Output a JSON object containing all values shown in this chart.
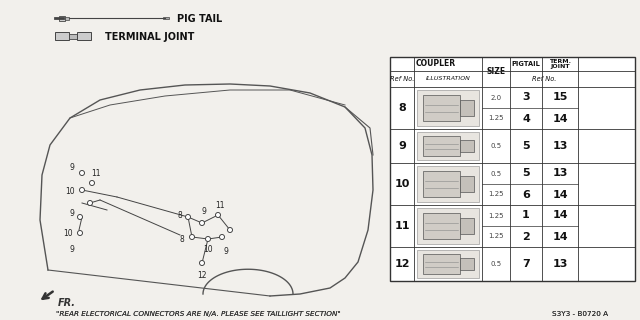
{
  "bg_color": "#f2f0ec",
  "table": {
    "rows": [
      {
        "ref": "8",
        "size1": "2.0",
        "pig1": "3",
        "term1": "15",
        "size2": "1.25",
        "pig2": "4",
        "term2": "14",
        "double": true
      },
      {
        "ref": "9",
        "size1": "0.5",
        "pig1": "5",
        "term1": "13",
        "double": false
      },
      {
        "ref": "10",
        "size1": "0.5",
        "pig1": "5",
        "term1": "13",
        "size2": "1.25",
        "pig2": "6",
        "term2": "14",
        "double": true
      },
      {
        "ref": "11",
        "size1": "1.25",
        "pig1": "1",
        "term1": "14",
        "size2": "1.25",
        "pig2": "2",
        "term2": "14",
        "double": true
      },
      {
        "ref": "12",
        "size1": "0.5",
        "pig1": "7",
        "term1": "13",
        "double": false
      }
    ]
  },
  "footer_note": "\"REAR ELECTORICAL CONNECTORS ARE N/A. PLEASE SEE TAILLIGHT SECTION\"",
  "part_number": "S3Y3 - B0720 A",
  "fr_label": "FR.",
  "pigtail_label": "PIG TAIL",
  "terminal_label": "TERMINAL JOINT",
  "coupler_label": "COUPLER",
  "size_label": "SIZE",
  "pigtail_col": "PIGTAIL",
  "term_joint_col": "TERM.\nJOINT",
  "ref_no_label": "Ref No.",
  "illus_label": "ILLUSTRATION",
  "ref_no2_label": "Ref No."
}
